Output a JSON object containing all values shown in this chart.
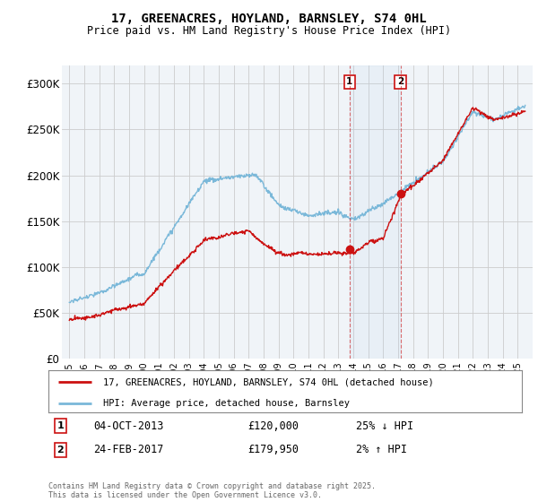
{
  "title_line1": "17, GREENACRES, HOYLAND, BARNSLEY, S74 0HL",
  "title_line2": "Price paid vs. HM Land Registry's House Price Index (HPI)",
  "ylim": [
    0,
    320000
  ],
  "yticks": [
    0,
    50000,
    100000,
    150000,
    200000,
    250000,
    300000
  ],
  "ytick_labels": [
    "£0",
    "£50K",
    "£100K",
    "£150K",
    "£200K",
    "£250K",
    "£300K"
  ],
  "background_color": "#ffffff",
  "plot_background": "#f0f4f8",
  "grid_color": "#cccccc",
  "hpi_color": "#7ab8d9",
  "price_color": "#cc1111",
  "sale1_date": "04-OCT-2013",
  "sale1_price": "£120,000",
  "sale1_hpi_diff": "25% ↓ HPI",
  "sale2_date": "24-FEB-2017",
  "sale2_price": "£179,950",
  "sale2_hpi_diff": "2% ↑ HPI",
  "legend_label_price": "17, GREENACRES, HOYLAND, BARNSLEY, S74 0HL (detached house)",
  "legend_label_hpi": "HPI: Average price, detached house, Barnsley",
  "footnote": "Contains HM Land Registry data © Crown copyright and database right 2025.\nThis data is licensed under the Open Government Licence v3.0.",
  "sale1_x": 2013.75,
  "sale1_y": 120000,
  "sale2_x": 2017.15,
  "sale2_y": 179950,
  "xmin": 1994.5,
  "xmax": 2026.0
}
